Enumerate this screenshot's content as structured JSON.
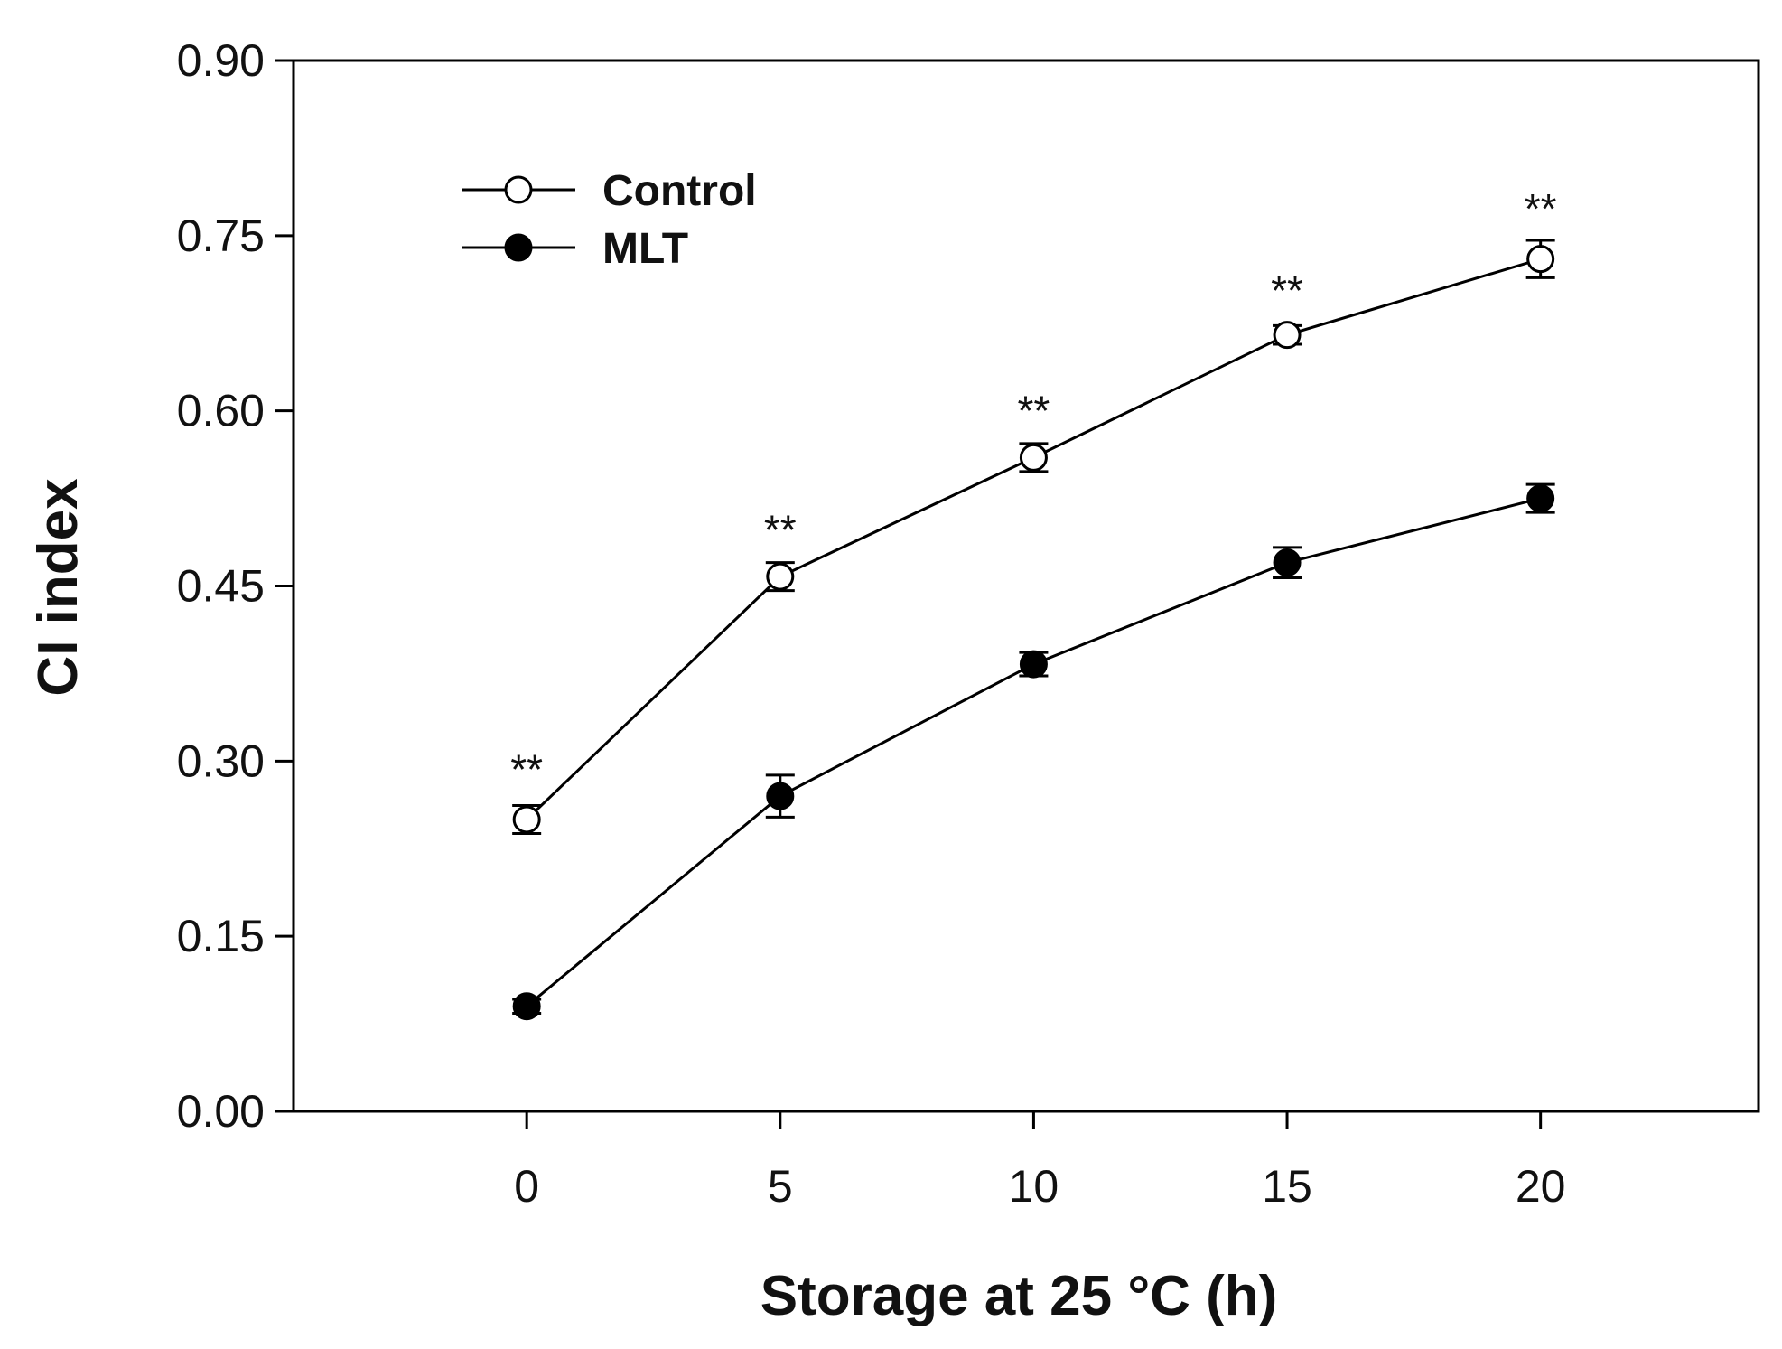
{
  "chart_data": {
    "type": "line",
    "title": "",
    "xlabel": "Storage at 25 °C (h)",
    "ylabel": "CI index",
    "x": [
      0,
      5,
      10,
      15,
      20
    ],
    "xlim": [
      -4.6,
      24.3
    ],
    "ylim": [
      0,
      0.9
    ],
    "xticks": [
      "0",
      "5",
      "10",
      "15",
      "20"
    ],
    "yticks": [
      "0.00",
      "0.15",
      "0.30",
      "0.45",
      "0.60",
      "0.75",
      "0.90"
    ],
    "grid": false,
    "legend": {
      "position": "top-left"
    },
    "series": [
      {
        "name": "Control",
        "marker": "open-circle",
        "values": [
          0.25,
          0.458,
          0.56,
          0.665,
          0.73
        ],
        "errors": [
          0.012,
          0.012,
          0.012,
          0.008,
          0.016
        ]
      },
      {
        "name": "MLT",
        "marker": "filled-circle",
        "values": [
          0.09,
          0.27,
          0.383,
          0.47,
          0.525
        ],
        "errors": [
          0.006,
          0.018,
          0.01,
          0.013,
          0.012
        ]
      }
    ],
    "annotations": [
      {
        "x": 0,
        "y": 0.3,
        "text": "**"
      },
      {
        "x": 5,
        "y": 0.505,
        "text": "**"
      },
      {
        "x": 10,
        "y": 0.607,
        "text": "**"
      },
      {
        "x": 15,
        "y": 0.71,
        "text": "**"
      },
      {
        "x": 20,
        "y": 0.78,
        "text": "**"
      }
    ]
  }
}
